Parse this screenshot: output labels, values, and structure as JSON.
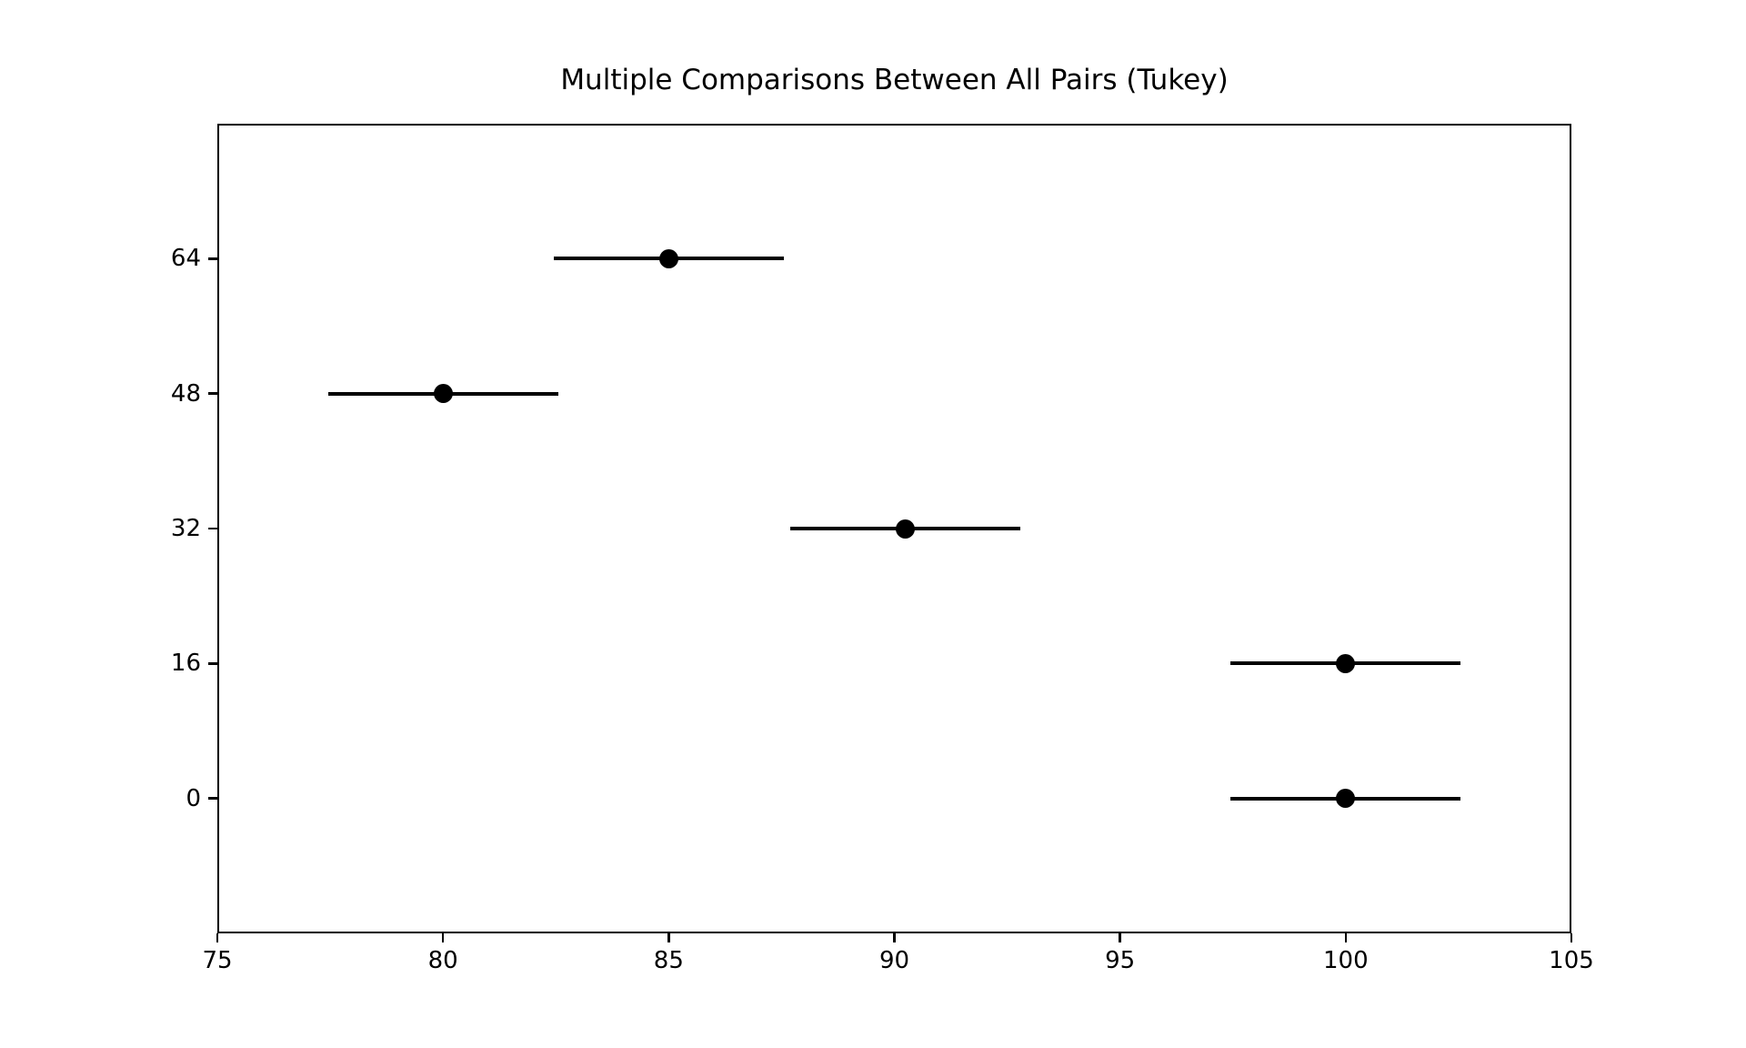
{
  "figure": {
    "background_color": "#ffffff",
    "foreground_color": "#000000"
  },
  "chart_data": {
    "type": "scatter",
    "subtype": "tukey-hsd-simultaneous-confidence-intervals",
    "title": "Multiple Comparisons Between All Pairs (Tukey)",
    "orientation": "horizontal-intervals",
    "grid": false,
    "legend": false,
    "xlabel": "",
    "ylabel": "",
    "xlim": [
      75,
      105
    ],
    "x_ticks": [
      75,
      80,
      85,
      90,
      95,
      100,
      105
    ],
    "y_categories_top_to_bottom": [
      "64",
      "48",
      "32",
      "16",
      "0"
    ],
    "groups": [
      {
        "label": "64",
        "mean": 85.0,
        "ci_low": 82.45,
        "ci_high": 87.55
      },
      {
        "label": "48",
        "mean": 80.0,
        "ci_low": 77.45,
        "ci_high": 82.55
      },
      {
        "label": "32",
        "mean": 90.25,
        "ci_low": 87.7,
        "ci_high": 92.8
      },
      {
        "label": "16",
        "mean": 100.0,
        "ci_low": 97.45,
        "ci_high": 102.55
      },
      {
        "label": "0",
        "mean": 100.0,
        "ci_low": 97.45,
        "ci_high": 102.55
      }
    ],
    "marker_color": "#000000",
    "line_color": "#000000"
  }
}
